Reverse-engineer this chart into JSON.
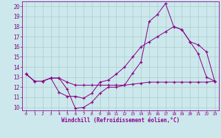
{
  "xlabel": "Windchill (Refroidissement éolien,°C)",
  "bg_color": "#cce8ec",
  "grid_color": "#aacccc",
  "line_color": "#880088",
  "xlim": [
    -0.5,
    23.5
  ],
  "ylim": [
    9.7,
    20.5
  ],
  "yticks": [
    10,
    11,
    12,
    13,
    14,
    15,
    16,
    17,
    18,
    19,
    20
  ],
  "xticks": [
    0,
    1,
    2,
    3,
    4,
    5,
    6,
    7,
    8,
    9,
    10,
    11,
    12,
    13,
    14,
    15,
    16,
    17,
    18,
    19,
    20,
    21,
    22,
    23
  ],
  "series1_x": [
    0,
    1,
    2,
    3,
    4,
    5,
    6,
    7,
    8,
    9,
    10,
    11,
    12,
    13,
    14,
    15,
    16,
    17,
    18,
    19,
    20,
    21,
    22,
    23
  ],
  "series1_y": [
    13.3,
    12.6,
    12.6,
    12.9,
    12.9,
    11.8,
    9.9,
    10.0,
    10.5,
    11.4,
    12.0,
    12.0,
    12.2,
    13.4,
    14.5,
    18.5,
    19.2,
    20.3,
    18.0,
    17.7,
    16.5,
    15.3,
    13.0,
    12.6
  ],
  "series2_x": [
    0,
    1,
    2,
    3,
    4,
    5,
    6,
    7,
    8,
    9,
    10,
    11,
    12,
    13,
    14,
    15,
    16,
    17,
    18,
    19,
    20,
    21,
    22,
    23
  ],
  "series2_y": [
    13.3,
    12.6,
    12.6,
    12.9,
    11.5,
    11.1,
    11.1,
    10.9,
    11.4,
    12.5,
    12.7,
    13.3,
    14.0,
    15.0,
    16.0,
    16.5,
    17.0,
    17.5,
    18.0,
    17.7,
    16.5,
    16.2,
    15.5,
    12.6
  ],
  "series3_x": [
    0,
    1,
    2,
    3,
    4,
    5,
    6,
    7,
    8,
    9,
    10,
    11,
    12,
    13,
    14,
    15,
    16,
    17,
    18,
    19,
    20,
    21,
    22,
    23
  ],
  "series3_y": [
    13.3,
    12.6,
    12.6,
    12.9,
    12.9,
    12.5,
    12.2,
    12.2,
    12.2,
    12.2,
    12.2,
    12.2,
    12.2,
    12.3,
    12.4,
    12.5,
    12.5,
    12.5,
    12.5,
    12.5,
    12.5,
    12.5,
    12.5,
    12.6
  ]
}
